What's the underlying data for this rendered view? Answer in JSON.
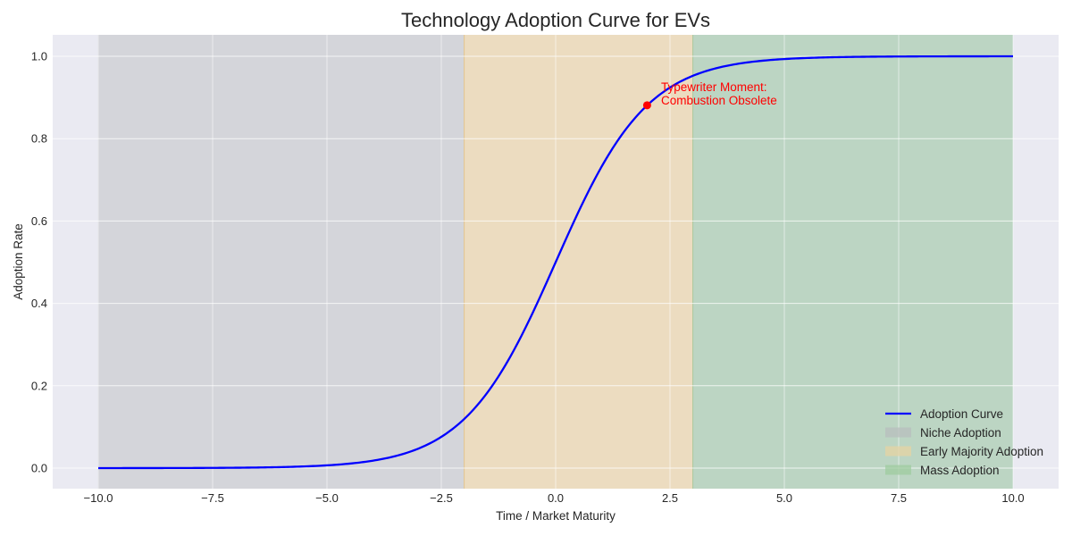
{
  "chart_data": {
    "type": "line",
    "title": "Technology Adoption Curve for EVs",
    "xlabel": "Time / Market Maturity",
    "ylabel": "Adoption Rate",
    "xlim": [
      -11,
      11
    ],
    "ylim": [
      -0.05,
      1.05
    ],
    "x_ticks": [
      -10.0,
      -7.5,
      -5.0,
      -2.5,
      0.0,
      2.5,
      5.0,
      7.5,
      10.0
    ],
    "x_tick_labels": [
      "−10.0",
      "−7.5",
      "−5.0",
      "−2.5",
      "0.0",
      "2.5",
      "5.0",
      "7.5",
      "10.0"
    ],
    "y_ticks": [
      0.0,
      0.2,
      0.4,
      0.6,
      0.8,
      1.0
    ],
    "y_tick_labels": [
      "0.0",
      "0.2",
      "0.4",
      "0.6",
      "0.8",
      "1.0"
    ],
    "grid": true,
    "legend_position": "lower right",
    "series": [
      {
        "name": "Adoption Curve",
        "color": "#0000ff",
        "function": "logistic 1/(1+exp(-x))",
        "x": [
          -10,
          -8,
          -6,
          -5,
          -4,
          -3,
          -2.5,
          -2,
          -1.5,
          -1,
          -0.5,
          0,
          0.5,
          1,
          1.5,
          2,
          2.5,
          3,
          4,
          5,
          6,
          8,
          10
        ],
        "y": [
          0.0,
          0.0003,
          0.0025,
          0.0067,
          0.018,
          0.0474,
          0.0759,
          0.1192,
          0.1824,
          0.2689,
          0.3775,
          0.5,
          0.6225,
          0.7311,
          0.8176,
          0.8808,
          0.9241,
          0.9526,
          0.982,
          0.9933,
          0.9975,
          0.9997,
          1.0
        ]
      }
    ],
    "regions": [
      {
        "name": "Niche Adoption",
        "x_start": -10,
        "x_end": -2,
        "color": "#a9a9a9",
        "alpha": 0.3
      },
      {
        "name": "Early Majority Adoption",
        "x_start": -2,
        "x_end": 3,
        "color": "#ffb14e",
        "alpha": 0.3
      },
      {
        "name": "Mass Adoption",
        "x_start": 3,
        "x_end": 10,
        "color": "#3cb043",
        "alpha": 0.3
      }
    ],
    "annotations": [
      {
        "text": "Typewriter Moment:\nCombustion Obsolete",
        "point": [
          2,
          0.881
        ],
        "color": "#ff0000",
        "marker": "circle"
      }
    ]
  },
  "legend": {
    "items": [
      {
        "label": "Adoption Curve",
        "kind": "line",
        "color": "#0000ff"
      },
      {
        "label": "Niche Adoption",
        "kind": "patch",
        "color": "#b8bdbd"
      },
      {
        "label": "Early Majority Adoption",
        "kind": "patch",
        "color": "#e6d3a3"
      },
      {
        "label": "Mass Adoption",
        "kind": "patch",
        "color": "#9fcb9f"
      }
    ]
  },
  "annotation": {
    "line1": "Typewriter Moment:",
    "line2": "Combustion Obsolete"
  },
  "colors": {
    "plot_bg": "#eaeaf2",
    "grid": "#ffffff",
    "curve": "#0000ff",
    "annotation": "#ff0000"
  }
}
